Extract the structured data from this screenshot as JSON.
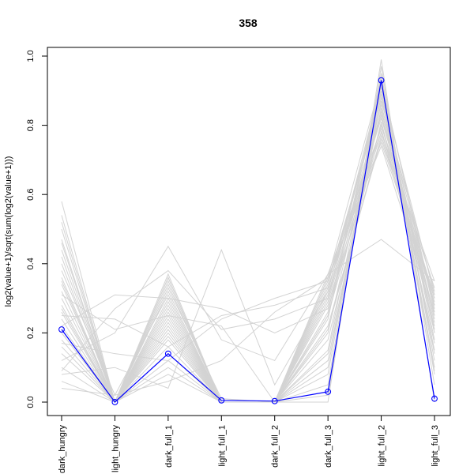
{
  "chart_data": {
    "type": "line",
    "title": "358",
    "xlabel": "",
    "ylabel": "log2(value+1)/sqrt(sum(log2(value+1)))",
    "categories": [
      "dark_hungry",
      "light_hungry",
      "dark_full_1",
      "light_full_1",
      "dark_full_2",
      "dark_full_3",
      "light_full_2",
      "light_full_3"
    ],
    "ylim": [
      0.0,
      1.0
    ],
    "yticks": [
      0.0,
      0.2,
      0.4,
      0.6,
      0.8,
      1.0
    ],
    "ytick_labels": [
      "0.0",
      "0.2",
      "0.4",
      "0.6",
      "0.8",
      "1.0"
    ],
    "highlight_series": {
      "color": "#0000ff",
      "values": [
        0.21,
        0.0,
        0.14,
        0.005,
        0.003,
        0.03,
        0.93,
        0.01
      ]
    },
    "background_series_color": "#d3d3d3",
    "background_series": [
      [
        0.58,
        0.0,
        0.36,
        0.0,
        0.0,
        0.0,
        0.99,
        0.0
      ],
      [
        0.54,
        0.0,
        0.33,
        0.01,
        0.0,
        0.02,
        0.97,
        0.05
      ],
      [
        0.5,
        0.0,
        0.3,
        0.0,
        0.0,
        0.05,
        0.95,
        0.08
      ],
      [
        0.47,
        0.0,
        0.34,
        0.0,
        0.0,
        0.1,
        0.92,
        0.1
      ],
      [
        0.44,
        0.0,
        0.28,
        0.0,
        0.0,
        0.15,
        0.9,
        0.15
      ],
      [
        0.42,
        0.0,
        0.36,
        0.0,
        0.0,
        0.2,
        0.88,
        0.2
      ],
      [
        0.4,
        0.0,
        0.26,
        0.0,
        0.0,
        0.25,
        0.86,
        0.25
      ],
      [
        0.38,
        0.02,
        0.31,
        0.0,
        0.0,
        0.3,
        0.84,
        0.28
      ],
      [
        0.36,
        0.0,
        0.24,
        0.0,
        0.0,
        0.33,
        0.82,
        0.3
      ],
      [
        0.34,
        0.0,
        0.35,
        0.0,
        0.0,
        0.28,
        0.8,
        0.33
      ],
      [
        0.32,
        0.0,
        0.22,
        0.0,
        0.0,
        0.35,
        0.78,
        0.35
      ],
      [
        0.3,
        0.0,
        0.32,
        0.0,
        0.0,
        0.22,
        0.76,
        0.31
      ],
      [
        0.28,
        0.0,
        0.2,
        0.0,
        0.0,
        0.36,
        0.74,
        0.26
      ],
      [
        0.26,
        0.0,
        0.29,
        0.0,
        0.0,
        0.18,
        0.81,
        0.23
      ],
      [
        0.24,
        0.0,
        0.18,
        0.0,
        0.0,
        0.31,
        0.86,
        0.21
      ],
      [
        0.22,
        0.0,
        0.27,
        0.0,
        0.0,
        0.26,
        0.91,
        0.18
      ],
      [
        0.2,
        0.0,
        0.16,
        0.0,
        0.0,
        0.24,
        0.94,
        0.12
      ],
      [
        0.18,
        0.0,
        0.25,
        0.0,
        0.0,
        0.34,
        0.89,
        0.09
      ],
      [
        0.16,
        0.0,
        0.14,
        0.0,
        0.0,
        0.29,
        0.83,
        0.24
      ],
      [
        0.14,
        0.0,
        0.23,
        0.0,
        0.0,
        0.21,
        0.77,
        0.29
      ],
      [
        0.46,
        0.0,
        0.21,
        0.0,
        0.0,
        0.12,
        0.87,
        0.32
      ],
      [
        0.52,
        0.0,
        0.19,
        0.0,
        0.0,
        0.08,
        0.93,
        0.27
      ],
      [
        0.35,
        0.0,
        0.12,
        0.0,
        0.0,
        0.37,
        0.79,
        0.22
      ],
      [
        0.27,
        0.0,
        0.37,
        0.0,
        0.0,
        0.14,
        0.85,
        0.17
      ],
      [
        0.1,
        0.0,
        0.1,
        0.0,
        0.0,
        0.32,
        0.92,
        0.2
      ],
      [
        0.06,
        0.0,
        0.08,
        0.0,
        0.0,
        0.36,
        0.75,
        0.3
      ],
      [
        0.31,
        0.21,
        0.25,
        0.22,
        0.0,
        0.25,
        0.8,
        0.28
      ],
      [
        0.22,
        0.31,
        0.3,
        0.27,
        0.2,
        0.27,
        0.78,
        0.3
      ],
      [
        0.25,
        0.24,
        0.16,
        0.25,
        0.28,
        0.33,
        0.83,
        0.25
      ],
      [
        0.17,
        0.14,
        0.12,
        0.24,
        0.3,
        0.35,
        0.88,
        0.28
      ],
      [
        0.08,
        0.1,
        0.04,
        0.44,
        0.05,
        0.32,
        0.9,
        0.14
      ],
      [
        0.12,
        0.2,
        0.45,
        0.18,
        0.12,
        0.37,
        0.47,
        0.35
      ],
      [
        0.04,
        0.02,
        0.06,
        0.12,
        0.26,
        0.36,
        0.93,
        0.26
      ],
      [
        0.09,
        0.27,
        0.38,
        0.21,
        0.24,
        0.3,
        0.91,
        0.31
      ]
    ],
    "grid": false,
    "legend": "none"
  }
}
